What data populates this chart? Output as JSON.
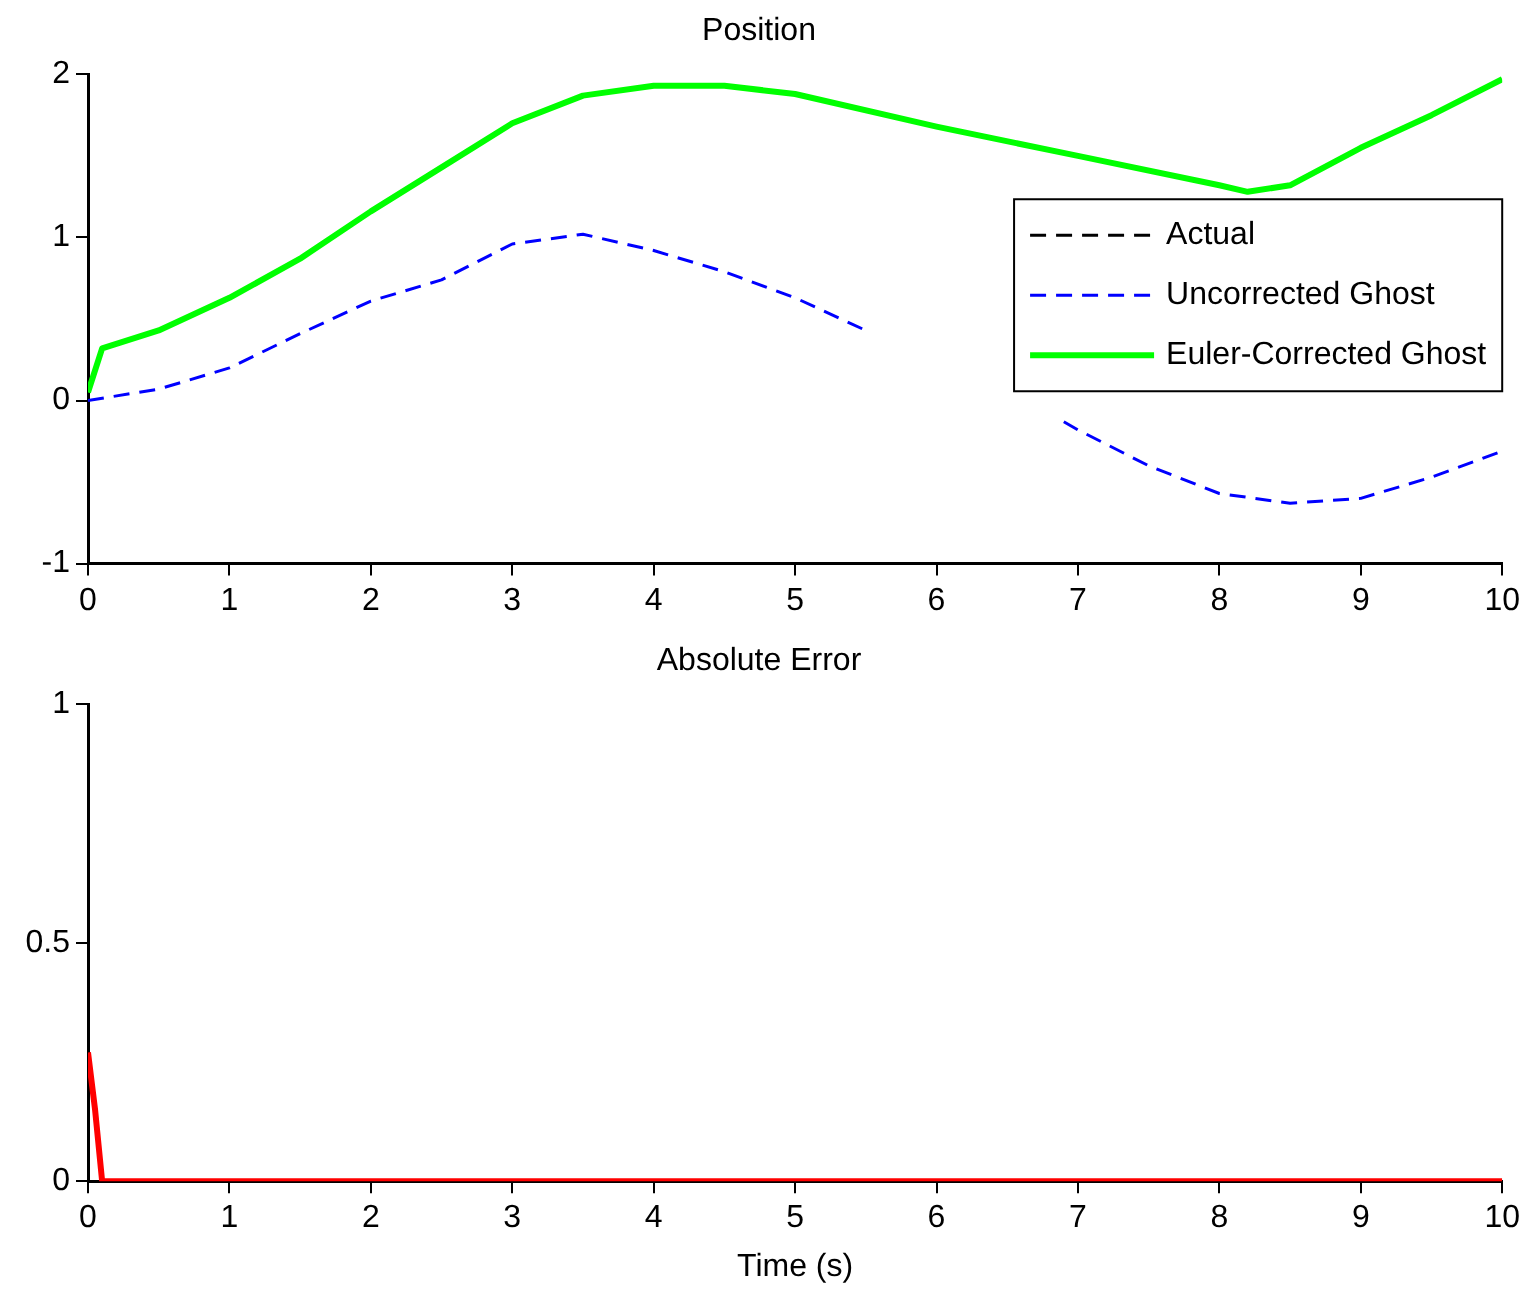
{
  "chart_data": [
    {
      "type": "line",
      "title": "Position",
      "xlim": [
        0,
        10
      ],
      "xticks": [
        0,
        1,
        2,
        3,
        4,
        5,
        6,
        7,
        8,
        9,
        10
      ],
      "ylim": [
        -1,
        2
      ],
      "yticks": [
        -1,
        0,
        1,
        2
      ],
      "grid": false,
      "legend": "right",
      "series": [
        {
          "name": "Actual",
          "color": "#000000",
          "line_style": "dashed"
        },
        {
          "name": "Uncorrected Ghost",
          "color": "#0000ff",
          "line_style": "dashed",
          "x": [
            0,
            0.5,
            1,
            1.5,
            2,
            2.5,
            3,
            3.5,
            4,
            4.5,
            5,
            5.5,
            6,
            6.5,
            6.9,
            7,
            7.5,
            8,
            8.5,
            9,
            9.5,
            10
          ],
          "values": [
            0,
            0.07,
            0.2,
            0.41,
            0.61,
            0.74,
            0.96,
            1.02,
            0.92,
            0.79,
            0.63,
            0.43,
            null,
            null,
            -0.13,
            -0.18,
            -0.4,
            -0.57,
            -0.63,
            -0.6,
            -0.47,
            -0.31
          ]
        },
        {
          "name": "Euler-Corrected Ghost",
          "color": "#00ff00",
          "line_style": "solid",
          "x": [
            0,
            0.1,
            0.5,
            1,
            1.5,
            2,
            2.5,
            3,
            3.5,
            4,
            4.5,
            5,
            6,
            7,
            8,
            8.2,
            8.5,
            9,
            9.5,
            10
          ],
          "values": [
            0.05,
            0.32,
            0.43,
            0.63,
            0.87,
            1.16,
            1.43,
            1.7,
            1.87,
            1.93,
            1.93,
            1.88,
            1.68,
            1.5,
            1.32,
            1.28,
            1.32,
            1.55,
            1.75,
            1.97
          ]
        }
      ]
    },
    {
      "type": "line",
      "title": "Absolute Error",
      "xlabel": "Time (s)",
      "xlim": [
        0,
        10
      ],
      "xticks": [
        0,
        1,
        2,
        3,
        4,
        5,
        6,
        7,
        8,
        9,
        10
      ],
      "ylim": [
        0,
        1
      ],
      "yticks": [
        0,
        0.5,
        1
      ],
      "grid": false,
      "legend": false,
      "series": [
        {
          "color": "#ff0000",
          "line_style": "solid",
          "x": [
            0,
            0.05,
            0.1,
            1,
            2,
            3,
            4,
            5,
            6,
            7,
            8,
            9,
            10
          ],
          "values": [
            0.27,
            0.15,
            0,
            0,
            0,
            0,
            0,
            0,
            0,
            0,
            0,
            0,
            0
          ]
        }
      ]
    }
  ]
}
